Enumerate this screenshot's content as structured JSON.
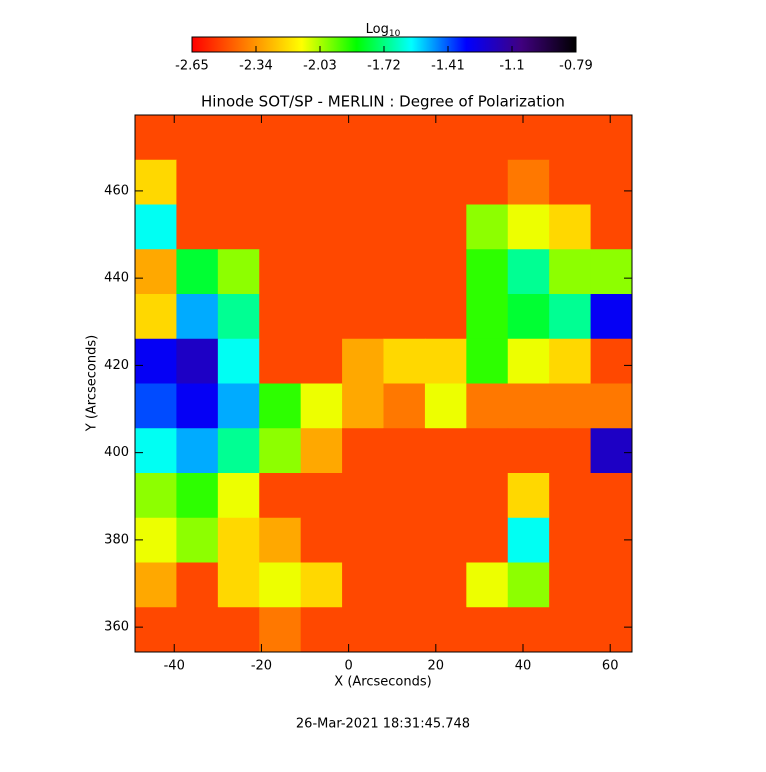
{
  "chart_data": {
    "type": "heatmap",
    "title": "Hinode SOT/SP - MERLIN : Degree of Polarization",
    "xlabel": "X (Arcseconds)",
    "ylabel": "Y (Arcseconds)",
    "footer": "26-Mar-2021 18:31:45.748",
    "xlim": [
      -49,
      65
    ],
    "ylim": [
      354.3,
      477.4
    ],
    "xticks": [
      -40,
      -20,
      0,
      20,
      40,
      60
    ],
    "yticks": [
      360,
      380,
      400,
      420,
      440,
      460
    ],
    "colorbar": {
      "label": "Log",
      "label_sub": "10",
      "clim": [
        -2.65,
        -0.79
      ],
      "ticks": [
        -2.65,
        -2.34,
        -2.03,
        -1.72,
        -1.41,
        -1.1,
        -0.79
      ],
      "colormap": [
        "#ff0000",
        "#ff8000",
        "#ffff00",
        "#00ff00",
        "#00ffff",
        "#0000ff",
        "#400080",
        "#000000"
      ]
    },
    "z": [
      [
        -2.5,
        -2.5,
        -2.5,
        -2.5,
        -2.5,
        -2.5,
        -2.5,
        -2.5,
        -2.5,
        -2.5,
        -2.5,
        -2.5
      ],
      [
        -2.2,
        -2.5,
        -2.5,
        -2.5,
        -2.5,
        -2.5,
        -2.5,
        -2.5,
        -2.5,
        -2.4,
        -2.5,
        -2.5
      ],
      [
        -1.6,
        -2.5,
        -2.5,
        -2.5,
        -2.5,
        -2.5,
        -2.5,
        -2.5,
        -2.0,
        -2.1,
        -2.2,
        -2.5
      ],
      [
        -2.3,
        -1.8,
        -2.0,
        -2.5,
        -2.5,
        -2.5,
        -2.5,
        -2.5,
        -1.9,
        -1.7,
        -2.0,
        -2.0
      ],
      [
        -2.2,
        -1.5,
        -1.7,
        -2.5,
        -2.5,
        -2.5,
        -2.5,
        -2.5,
        -1.9,
        -1.8,
        -1.7,
        -1.3
      ],
      [
        -1.3,
        -1.2,
        -1.6,
        -2.5,
        -2.5,
        -2.3,
        -2.2,
        -2.2,
        -1.9,
        -2.1,
        -2.2,
        -2.5
      ],
      [
        -1.4,
        -1.3,
        -1.5,
        -1.9,
        -2.1,
        -2.3,
        -2.4,
        -2.1,
        -2.4,
        -2.4,
        -2.4,
        -2.4
      ],
      [
        -1.6,
        -1.5,
        -1.7,
        -2.0,
        -2.3,
        -2.5,
        -2.5,
        -2.5,
        -2.5,
        -2.5,
        -2.5,
        -1.2
      ],
      [
        -2.0,
        -1.9,
        -2.1,
        -2.5,
        -2.5,
        -2.5,
        -2.5,
        -2.5,
        -2.5,
        -2.2,
        -2.5,
        -2.5
      ],
      [
        -2.1,
        -2.0,
        -2.2,
        -2.3,
        -2.5,
        -2.5,
        -2.5,
        -2.5,
        -2.5,
        -1.6,
        -2.5,
        -2.5
      ],
      [
        -2.3,
        -2.5,
        -2.2,
        -2.1,
        -2.2,
        -2.5,
        -2.5,
        -2.5,
        -2.1,
        -2.0,
        -2.5,
        -2.5
      ],
      [
        -2.5,
        -2.5,
        -2.5,
        -2.4,
        -2.5,
        -2.5,
        -2.5,
        -2.5,
        -2.5,
        -2.5,
        -2.5,
        -2.5
      ]
    ]
  }
}
